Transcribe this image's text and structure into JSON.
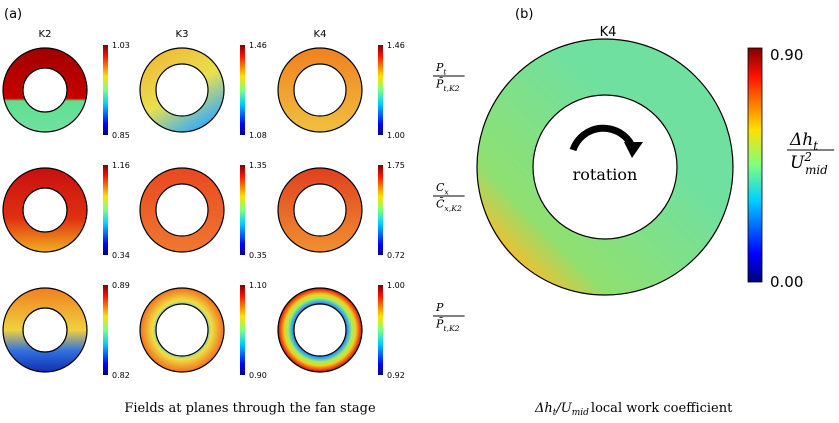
{
  "panel_a": {
    "label": "(a)",
    "columns": [
      "K2",
      "K3",
      "K4"
    ],
    "rows": [
      {
        "colorbars": [
          [
            "1.03",
            "0.85"
          ],
          [
            "1.46",
            "1.08"
          ],
          [
            "1.46",
            "1.00"
          ]
        ],
        "quantity": {
          "num": "P",
          "num_sub": "t",
          "den": "P̄",
          "den_sub": "t,K2"
        }
      },
      {
        "colorbars": [
          [
            "1.16",
            "0.34"
          ],
          [
            "1.35",
            "0.35"
          ],
          [
            "1.75",
            "0.72"
          ]
        ],
        "quantity": {
          "num": "C",
          "num_sub": "x",
          "den": "C̄",
          "den_sub": "x,K2"
        }
      },
      {
        "colorbars": [
          [
            "0.89",
            "0.82"
          ],
          [
            "1.10",
            "0.90"
          ],
          [
            "1.00",
            "0.92"
          ]
        ],
        "quantity": {
          "num": "P",
          "num_sub": "",
          "den": "P̄",
          "den_sub": "t,K2"
        }
      }
    ],
    "caption": "Fields at planes through the fan stage"
  },
  "panel_b": {
    "label": "(b)",
    "title": "K4",
    "center_text": "rotation",
    "colorbar": [
      "0.90",
      "0.00"
    ],
    "quantity": {
      "num": "Δh",
      "num_sub": "t",
      "den": "U",
      "den_sup": "2",
      "den_sub": "mid"
    },
    "caption": {
      "part1": "Δh",
      "sub1": "t",
      "part2": "/U",
      "sub2": "mid",
      "part3": "local work coefficient"
    }
  }
}
